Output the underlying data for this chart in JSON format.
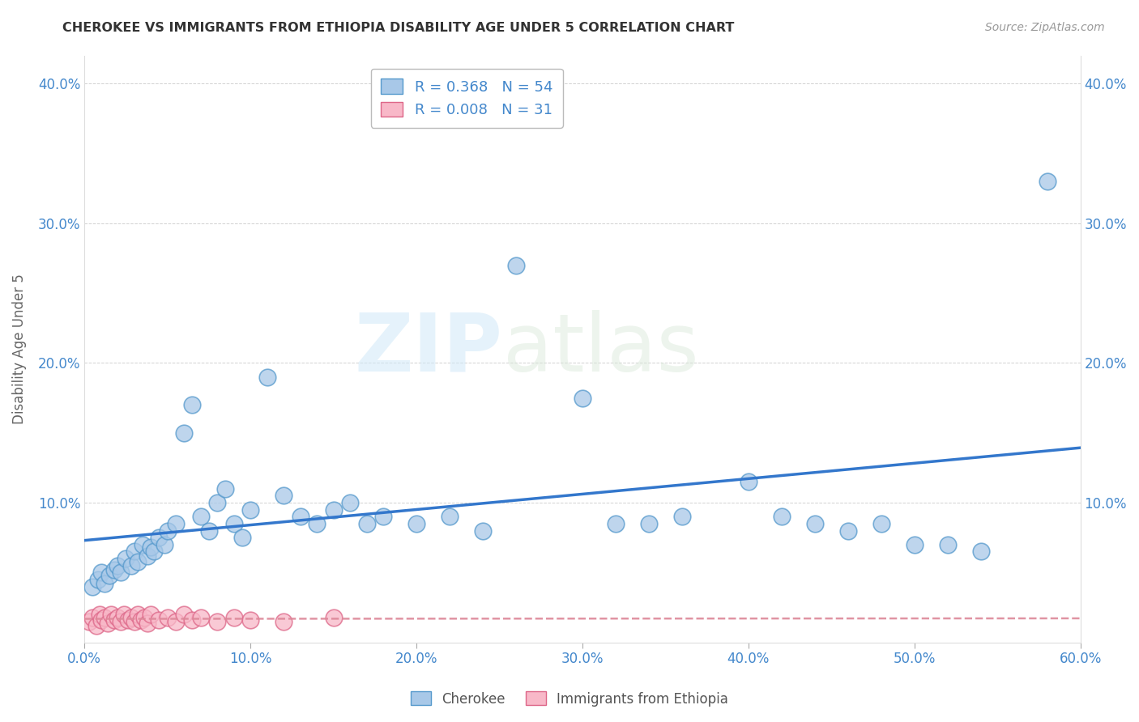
{
  "title": "CHEROKEE VS IMMIGRANTS FROM ETHIOPIA DISABILITY AGE UNDER 5 CORRELATION CHART",
  "source": "Source: ZipAtlas.com",
  "ylabel": "Disability Age Under 5",
  "xlim": [
    0.0,
    0.6
  ],
  "ylim": [
    0.0,
    0.42
  ],
  "xticks": [
    0.0,
    0.1,
    0.2,
    0.3,
    0.4,
    0.5,
    0.6
  ],
  "xtick_labels": [
    "0.0%",
    "10.0%",
    "20.0%",
    "30.0%",
    "40.0%",
    "50.0%",
    "60.0%"
  ],
  "yticks": [
    0.0,
    0.1,
    0.2,
    0.3,
    0.4
  ],
  "ytick_labels": [
    "",
    "10.0%",
    "20.0%",
    "30.0%",
    "40.0%"
  ],
  "blue_fill": "#a8c8e8",
  "blue_edge": "#5599cc",
  "pink_fill": "#f8b8c8",
  "pink_edge": "#dd6688",
  "line_blue": "#3377cc",
  "line_pink": "#dd8899",
  "legend_R_blue": "0.368",
  "legend_N_blue": "54",
  "legend_R_pink": "0.008",
  "legend_N_pink": "31",
  "watermark_zip": "ZIP",
  "watermark_atlas": "atlas",
  "cherokee_x": [
    0.005,
    0.008,
    0.01,
    0.012,
    0.015,
    0.018,
    0.02,
    0.022,
    0.025,
    0.028,
    0.03,
    0.032,
    0.035,
    0.038,
    0.04,
    0.042,
    0.045,
    0.048,
    0.05,
    0.055,
    0.06,
    0.065,
    0.07,
    0.075,
    0.08,
    0.085,
    0.09,
    0.095,
    0.1,
    0.11,
    0.12,
    0.13,
    0.14,
    0.15,
    0.16,
    0.17,
    0.18,
    0.2,
    0.22,
    0.24,
    0.26,
    0.3,
    0.32,
    0.34,
    0.36,
    0.4,
    0.42,
    0.44,
    0.46,
    0.48,
    0.5,
    0.52,
    0.54,
    0.58
  ],
  "cherokee_y": [
    0.04,
    0.045,
    0.05,
    0.042,
    0.048,
    0.052,
    0.055,
    0.05,
    0.06,
    0.055,
    0.065,
    0.058,
    0.07,
    0.062,
    0.068,
    0.065,
    0.075,
    0.07,
    0.08,
    0.085,
    0.15,
    0.17,
    0.09,
    0.08,
    0.1,
    0.11,
    0.085,
    0.075,
    0.095,
    0.19,
    0.105,
    0.09,
    0.085,
    0.095,
    0.1,
    0.085,
    0.09,
    0.085,
    0.09,
    0.08,
    0.27,
    0.175,
    0.085,
    0.085,
    0.09,
    0.115,
    0.09,
    0.085,
    0.08,
    0.085,
    0.07,
    0.07,
    0.065,
    0.33
  ],
  "ethiopia_x": [
    0.003,
    0.005,
    0.007,
    0.009,
    0.01,
    0.012,
    0.014,
    0.016,
    0.018,
    0.02,
    0.022,
    0.024,
    0.026,
    0.028,
    0.03,
    0.032,
    0.034,
    0.036,
    0.038,
    0.04,
    0.045,
    0.05,
    0.055,
    0.06,
    0.065,
    0.07,
    0.08,
    0.09,
    0.1,
    0.12,
    0.15
  ],
  "ethiopia_y": [
    0.015,
    0.018,
    0.012,
    0.02,
    0.016,
    0.018,
    0.014,
    0.02,
    0.016,
    0.018,
    0.015,
    0.02,
    0.016,
    0.018,
    0.015,
    0.02,
    0.016,
    0.018,
    0.014,
    0.02,
    0.016,
    0.018,
    0.015,
    0.02,
    0.016,
    0.018,
    0.015,
    0.018,
    0.016,
    0.015,
    0.018
  ]
}
